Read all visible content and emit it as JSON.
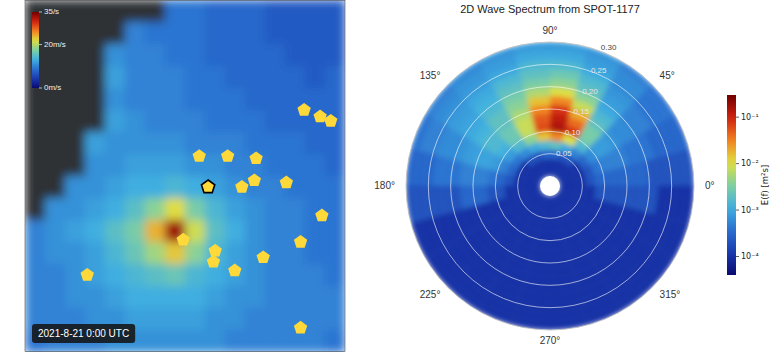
{
  "chart_data": [
    {
      "type": "map",
      "timestamp": "2021-8-21 0:00 UTC",
      "xlim": [
        -80,
        -62
      ],
      "ylim": [
        26,
        42
      ],
      "tick_labels": false,
      "wind_speed": [
        [
          null,
          null,
          null,
          null,
          null,
          null,
          null,
          9,
          9,
          8,
          8,
          8,
          7,
          7,
          7,
          7
        ],
        [
          null,
          null,
          null,
          null,
          null,
          10,
          9,
          9,
          9,
          8,
          8,
          8,
          7,
          7,
          7,
          7
        ],
        [
          null,
          null,
          null,
          null,
          11,
          10,
          10,
          9,
          9,
          8,
          8,
          8,
          8,
          7,
          7,
          7
        ],
        [
          null,
          null,
          null,
          null,
          12,
          10,
          10,
          10,
          9,
          9,
          8,
          8,
          8,
          8,
          7,
          8
        ],
        [
          null,
          null,
          null,
          null,
          11,
          10,
          10,
          10,
          9,
          9,
          9,
          8,
          8,
          8,
          8,
          8
        ],
        [
          null,
          null,
          null,
          null,
          12,
          11,
          10,
          10,
          10,
          9,
          9,
          9,
          8,
          8,
          8,
          8
        ],
        [
          null,
          null,
          null,
          12,
          11,
          11,
          11,
          11,
          10,
          10,
          10,
          9,
          9,
          9,
          8,
          8
        ],
        [
          null,
          null,
          null,
          11,
          11,
          12,
          12,
          12,
          11,
          11,
          10,
          10,
          9,
          9,
          9,
          8
        ],
        [
          null,
          null,
          11,
          11,
          12,
          13,
          13,
          14,
          13,
          12,
          11,
          10,
          10,
          9,
          9,
          9
        ],
        [
          null,
          11,
          11,
          12,
          13,
          15,
          18,
          22,
          17,
          14,
          12,
          11,
          10,
          10,
          9,
          9
        ],
        [
          10,
          11,
          12,
          13,
          15,
          17,
          24,
          33,
          21,
          15,
          13,
          11,
          10,
          10,
          9,
          9
        ],
        [
          10,
          11,
          11,
          12,
          14,
          16,
          19,
          23,
          18,
          14,
          12,
          11,
          10,
          10,
          9,
          9
        ],
        [
          10,
          10,
          11,
          12,
          13,
          14,
          15,
          16,
          14,
          13,
          12,
          11,
          10,
          10,
          10,
          9
        ],
        [
          10,
          10,
          11,
          11,
          12,
          13,
          13,
          13,
          13,
          12,
          11,
          11,
          10,
          10,
          10,
          10
        ],
        [
          10,
          10,
          10,
          11,
          11,
          12,
          12,
          12,
          12,
          11,
          11,
          10,
          10,
          10,
          10,
          10
        ],
        [
          9,
          10,
          10,
          10,
          11,
          11,
          11,
          11,
          11,
          11,
          10,
          10,
          10,
          10,
          10,
          9
        ]
      ],
      "colorbar": {
        "range": [
          0,
          35
        ],
        "ticks": [
          {
            "value": 35,
            "label": "35/s"
          },
          {
            "value": 20,
            "label": "20m/s"
          },
          {
            "value": 0,
            "label": "0m/s"
          }
        ]
      },
      "buoys": {
        "lon": [
          -64.3,
          -63.4,
          -62.8,
          -70.2,
          -68.6,
          -67.0,
          -67.8,
          -67.1,
          -65.3,
          -63.3,
          -71.1,
          -69.3,
          -69.4,
          -66.6,
          -64.5,
          -68.2,
          -76.5,
          -64.5
        ],
        "lat": [
          37.0,
          36.7,
          36.5,
          34.9,
          34.9,
          34.8,
          33.5,
          33.8,
          33.7,
          32.2,
          31.1,
          30.6,
          30.1,
          30.3,
          31.0,
          29.7,
          29.5,
          27.1
        ]
      },
      "selected_buoy": {
        "lon": -69.7,
        "lat": 33.5
      }
    },
    {
      "type": "polar",
      "title": "2D Wave Spectrum from SPOT-1177",
      "rlim": [
        0,
        0.3
      ],
      "rticks": [
        0.05,
        {
          "value": 0.1,
          "label": "0.10"
        },
        0.15,
        {
          "value": 0.2,
          "label": "0.20"
        },
        0.25,
        {
          "value": 0.3,
          "label": "0.30"
        }
      ],
      "thetaticks": [
        {
          "value": 0,
          "label": "0°"
        },
        {
          "value": 45,
          "label": "45°"
        },
        {
          "value": 90,
          "label": "90°"
        },
        {
          "value": 135,
          "label": "135°"
        },
        {
          "value": 180,
          "label": "180°"
        },
        {
          "value": 225,
          "label": "225°"
        },
        {
          "value": 270,
          "label": "270°"
        },
        {
          "value": 315,
          "label": "315°"
        }
      ],
      "frequency_edges": [
        0,
        0.04,
        0.06,
        0.08,
        0.1,
        0.12,
        0.14,
        0.16,
        0.18,
        0.2,
        0.22,
        0.24,
        0.26,
        0.28,
        0.3
      ],
      "direction_edges": [
        0,
        15,
        30,
        45,
        60,
        75,
        90,
        105,
        120,
        135,
        150,
        165,
        180,
        195,
        210,
        225,
        240,
        255,
        270,
        285,
        300,
        315,
        330,
        345,
        360
      ],
      "energy": [
        [
          0.0001,
          0.0001,
          0.0002,
          0.0003,
          0.0003,
          0.0003,
          0.0003,
          0.0003,
          0.0003,
          0.0002,
          0.0002,
          0.0002,
          0.0002,
          0.0002
        ],
        [
          0.0001,
          0.0001,
          0.0002,
          0.0004,
          0.0005,
          0.0005,
          0.0005,
          0.0004,
          0.0004,
          0.0004,
          0.0003,
          0.0003,
          0.0003,
          0.0003
        ],
        [
          0.0001,
          0.0001,
          0.0003,
          0.0006,
          0.0008,
          0.0008,
          0.0007,
          0.0006,
          0.0006,
          0.0005,
          0.0005,
          0.0004,
          0.0004,
          0.0004
        ],
        [
          0.0001,
          0.0002,
          0.0005,
          0.0015,
          0.003,
          0.003,
          0.002,
          0.0015,
          0.001,
          0.0008,
          0.0007,
          0.0006,
          0.0006,
          0.0005
        ],
        [
          0.0001,
          0.0002,
          0.001,
          0.01,
          0.08,
          0.04,
          0.02,
          0.008,
          0.004,
          0.002,
          0.0015,
          0.001,
          0.0008,
          0.0007
        ],
        [
          0.0001,
          0.0003,
          0.002,
          0.03,
          0.15,
          0.12,
          0.08,
          0.03,
          0.01,
          0.004,
          0.0025,
          0.0015,
          0.001,
          0.0008
        ],
        [
          0.0001,
          0.0003,
          0.0015,
          0.015,
          0.06,
          0.05,
          0.03,
          0.015,
          0.006,
          0.003,
          0.002,
          0.0015,
          0.001,
          0.0008
        ],
        [
          0.0001,
          0.0002,
          0.001,
          0.004,
          0.008,
          0.008,
          0.006,
          0.004,
          0.003,
          0.002,
          0.0015,
          0.001,
          0.0008,
          0.0007
        ],
        [
          0.0001,
          0.0002,
          0.0006,
          0.0015,
          0.0025,
          0.0025,
          0.002,
          0.002,
          0.0015,
          0.0012,
          0.001,
          0.0008,
          0.0007,
          0.0006
        ],
        [
          0.0001,
          0.0001,
          0.0004,
          0.0008,
          0.0012,
          0.0015,
          0.0015,
          0.0012,
          0.001,
          0.0009,
          0.0008,
          0.0007,
          0.0006,
          0.0005
        ],
        [
          0.0001,
          0.0001,
          0.0003,
          0.0005,
          0.0008,
          0.0009,
          0.0009,
          0.0008,
          0.0007,
          0.0006,
          0.0006,
          0.0005,
          0.0005,
          0.0004
        ],
        [
          0.0001,
          0.0001,
          0.0002,
          0.0003,
          0.0004,
          0.0005,
          0.0005,
          0.0005,
          0.0004,
          0.0004,
          0.0004,
          0.0003,
          0.0003,
          0.0003
        ],
        [
          0.0001,
          0.0001,
          0.0001,
          0.0002,
          0.0002,
          0.0003,
          0.0003,
          0.0003,
          0.0002,
          0.0002,
          0.0002,
          0.0002,
          0.0002,
          0.0002
        ],
        [
          0.0001,
          0.0001,
          0.0001,
          0.0001,
          0.0001,
          0.0001,
          0.0001,
          0.0001,
          0.0001,
          0.0001,
          0.0001,
          0.0001,
          0.0001,
          0.0001
        ],
        [
          0.0001,
          0.0001,
          0.0001,
          0.0001,
          0.0001,
          0.0001,
          0.0001,
          0.0001,
          0.0001,
          0.0001,
          0.0001,
          0.0001,
          0.0001,
          0.0001
        ],
        [
          0.0001,
          0.0001,
          0.0001,
          0.0001,
          0.0001,
          0.0001,
          0.0001,
          0.0001,
          0.0001,
          0.0001,
          0.0001,
          0.0001,
          0.0001,
          0.0001
        ],
        [
          0.0001,
          0.0001,
          0.0001,
          0.0001,
          0.0001,
          0.0001,
          0.0001,
          0.0001,
          0.0001,
          0.0001,
          0.0001,
          0.0001,
          0.0001,
          0.0001
        ],
        [
          0.0001,
          0.0001,
          0.0001,
          0.0001,
          0.0001,
          0.0001,
          0.0001,
          0.0001,
          0.0001,
          0.0001,
          0.0001,
          0.0001,
          0.0001,
          0.0001
        ],
        [
          0.0001,
          0.0001,
          0.0001,
          0.0001,
          0.0001,
          0.0001,
          0.0001,
          0.0001,
          0.0001,
          0.0001,
          0.0001,
          0.0001,
          0.0001,
          0.0001
        ],
        [
          0.0001,
          0.0001,
          0.0001,
          0.0001,
          0.0001,
          0.0001,
          0.0001,
          0.0001,
          0.0001,
          0.0001,
          0.0001,
          0.0001,
          0.0001,
          0.0001
        ],
        [
          0.0001,
          0.0001,
          0.0001,
          0.0001,
          0.0001,
          0.0001,
          0.0001,
          0.0001,
          0.0001,
          0.0001,
          0.0001,
          0.0001,
          0.0001,
          0.0001
        ],
        [
          0.0001,
          0.0001,
          0.0001,
          0.0001,
          0.0001,
          0.0001,
          0.0001,
          0.0001,
          0.0001,
          0.0001,
          0.0001,
          0.0001,
          0.0001,
          0.0001
        ],
        [
          0.0001,
          0.0001,
          0.0001,
          0.0001,
          0.0001,
          0.0001,
          0.0001,
          0.0001,
          0.0001,
          0.0001,
          0.0001,
          0.0001,
          0.0001,
          0.0001
        ],
        [
          0.0001,
          0.0001,
          0.0001,
          0.0002,
          0.0002,
          0.0002,
          0.0002,
          0.0002,
          0.0002,
          0.0002,
          0.0001,
          0.0001,
          0.0001,
          0.0001
        ]
      ],
      "colorbar": {
        "label": "E(f) [m²s]",
        "log": true,
        "range": [
          4e-05,
          0.3
        ],
        "ticks": [
          {
            "value": 0.1,
            "label": "10⁻¹"
          },
          {
            "value": 0.01,
            "label": "10⁻²"
          },
          {
            "value": 0.001,
            "label": "10⁻³"
          },
          {
            "value": 0.0001,
            "label": "10⁻⁴"
          }
        ]
      }
    }
  ]
}
